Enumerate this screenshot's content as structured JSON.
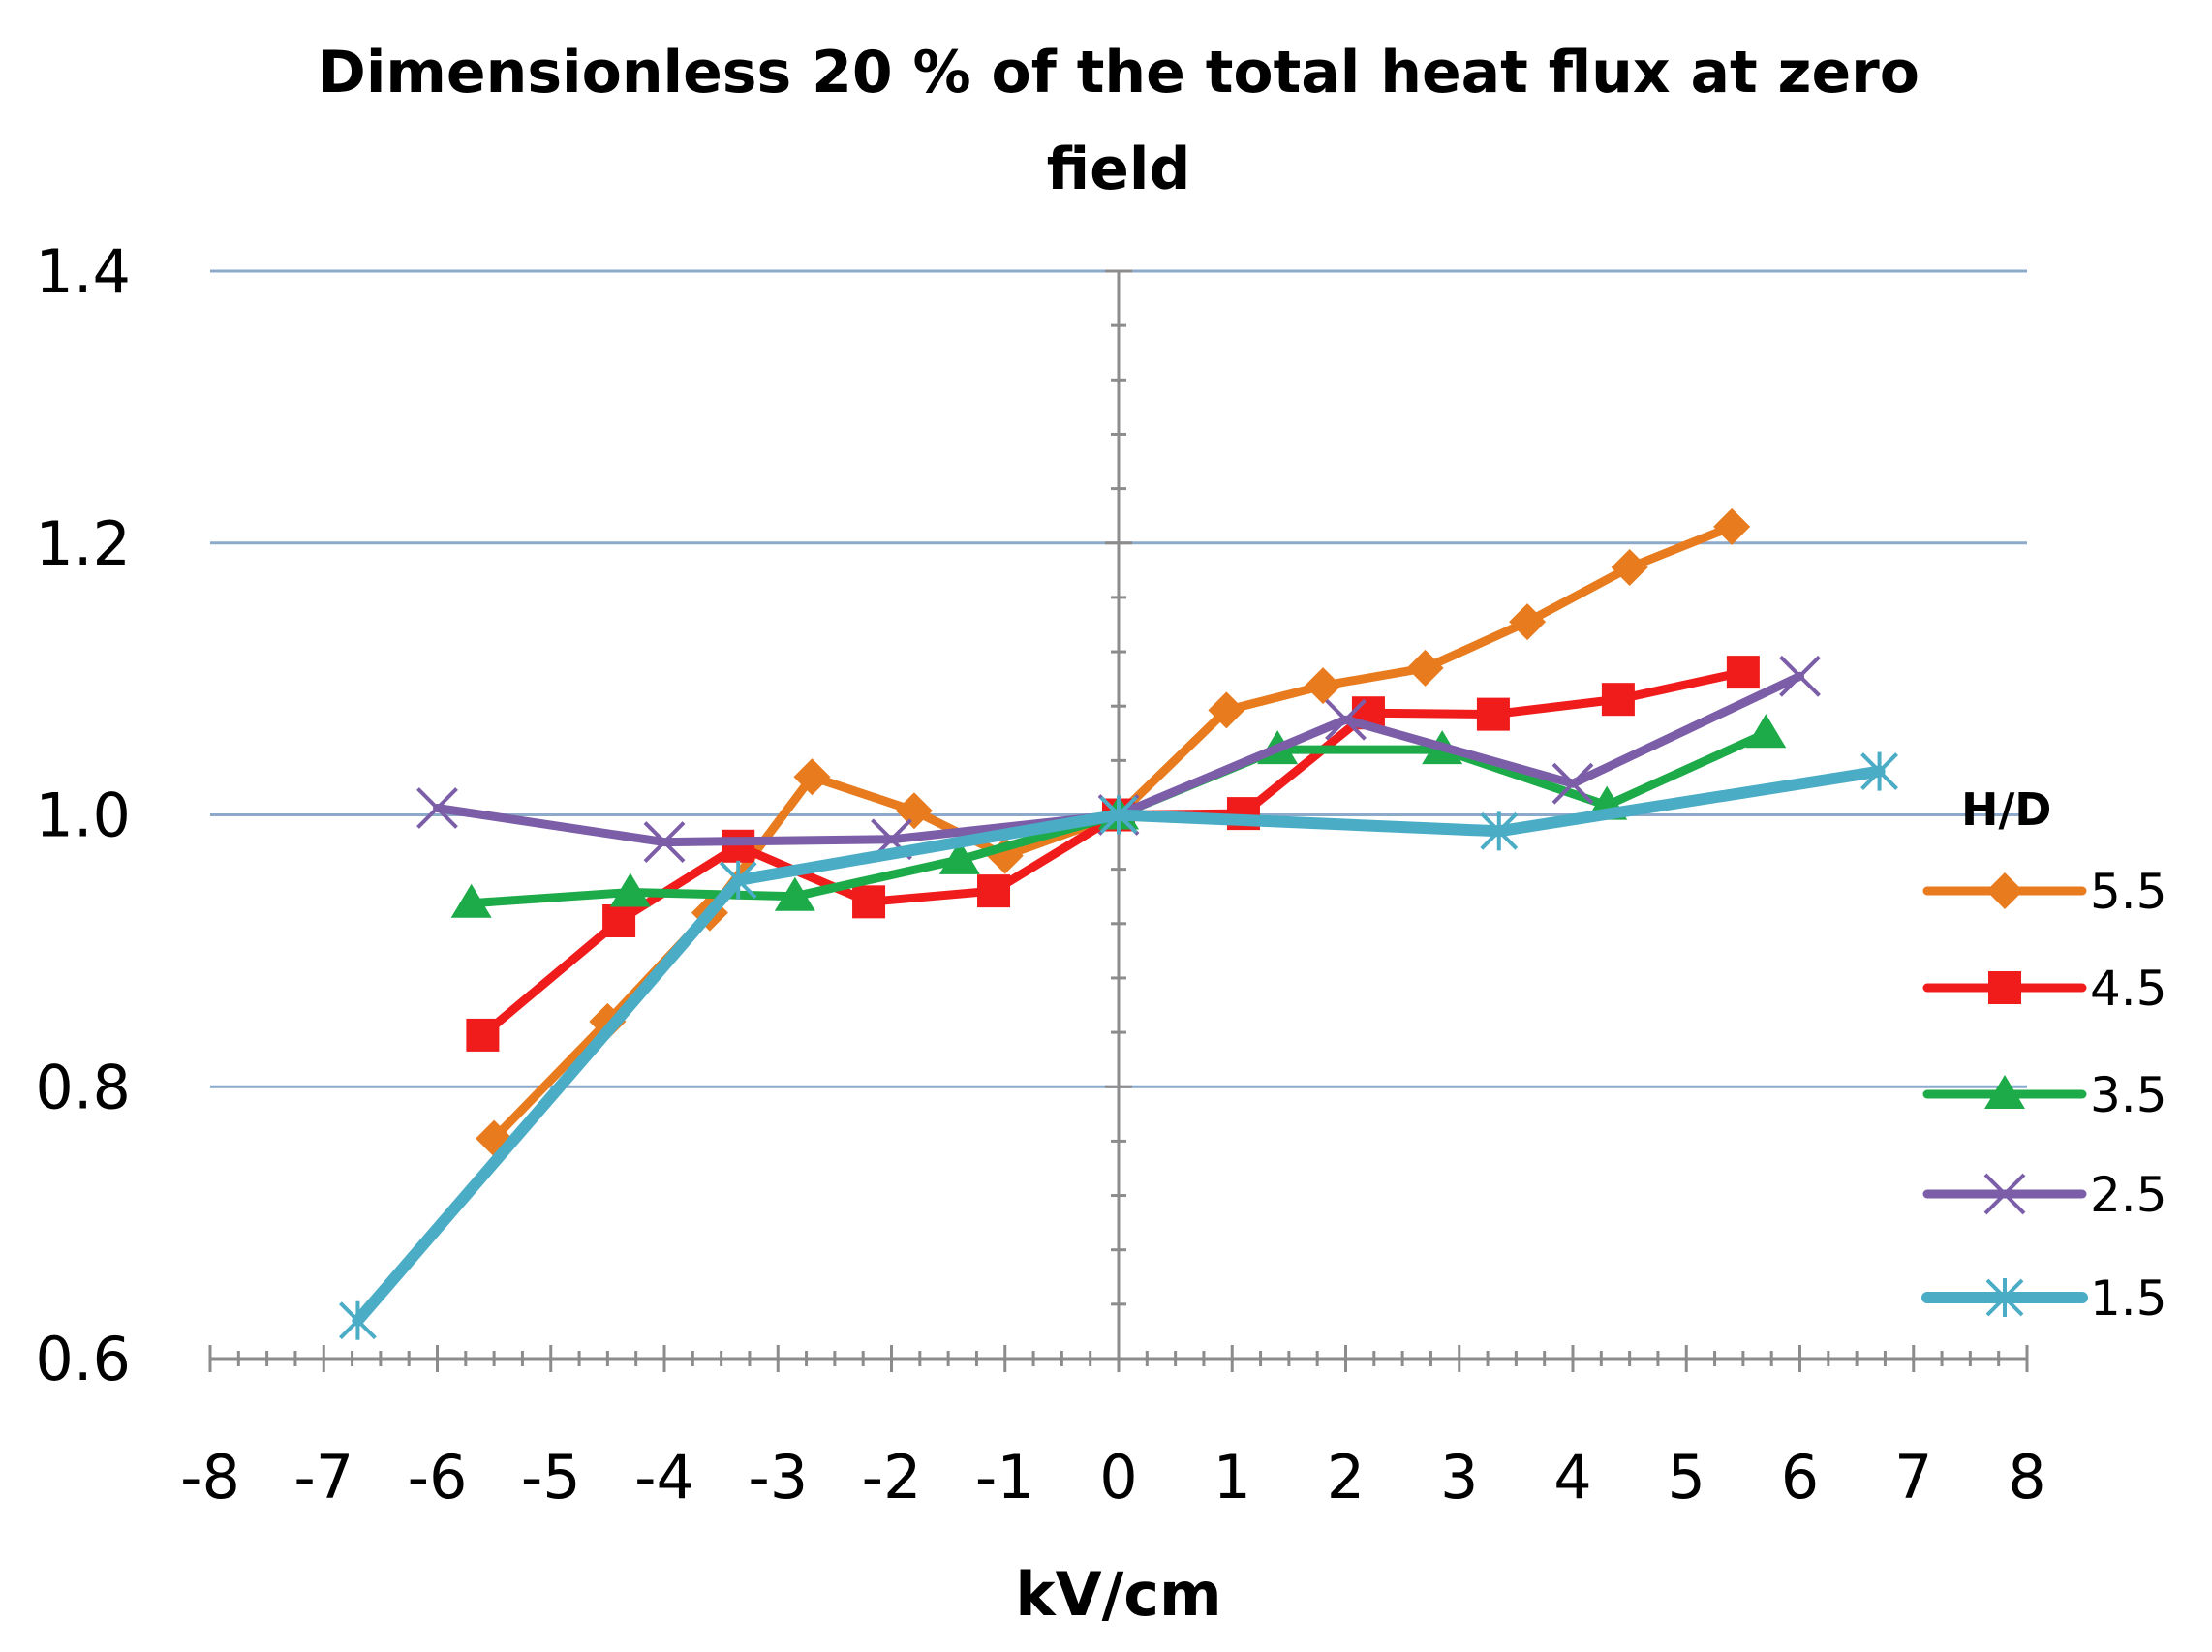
{
  "chart_data": {
    "type": "line",
    "title_lines": [
      "Dimensionless 20 % of the total heat flux at zero",
      "field"
    ],
    "xlabel": "kV/cm",
    "ylabel": "",
    "xlim": [
      -8,
      8
    ],
    "ylim": [
      0.6,
      1.4
    ],
    "x_ticks": [
      -8,
      -7,
      -6,
      -5,
      -4,
      -3,
      -2,
      -1,
      0,
      1,
      2,
      3,
      4,
      5,
      6,
      7,
      8
    ],
    "x_tick_labels": [
      "-8",
      "-7",
      "-6",
      "-5",
      "-4",
      "-3",
      "-2",
      "-1",
      "0",
      "1",
      "2",
      "3",
      "4",
      "5",
      "6",
      "7",
      "8"
    ],
    "y_ticks": [
      0.6,
      0.8,
      1.0,
      1.2,
      1.4
    ],
    "y_tick_labels": [
      "0.6",
      "0.8",
      "1.0",
      "1.2",
      "1.4"
    ],
    "grid": true,
    "legend_title": "H/D",
    "legend_position": "right",
    "series": [
      {
        "name": "5.5",
        "color": "#E87B1E",
        "marker": "diamond",
        "x": [
          -5.5,
          -4.5,
          -3.6,
          -2.7,
          -1.8,
          -1.0,
          0,
          0.95,
          1.8,
          2.7,
          3.6,
          4.5,
          5.4
        ],
        "y": [
          0.762,
          0.848,
          0.928,
          1.028,
          1.003,
          0.97,
          1.0,
          1.077,
          1.095,
          1.108,
          1.142,
          1.182,
          1.212
        ]
      },
      {
        "name": "4.5",
        "color": "#F01C1C",
        "marker": "square",
        "x": [
          -5.6,
          -4.4,
          -3.35,
          -2.2,
          -1.1,
          0,
          1.1,
          2.2,
          3.3,
          4.4,
          5.5
        ],
        "y": [
          0.838,
          0.922,
          0.977,
          0.936,
          0.944,
          1.0,
          1.001,
          1.075,
          1.074,
          1.085,
          1.105
        ]
      },
      {
        "name": "3.5",
        "color": "#1DAB4A",
        "marker": "triangle",
        "x": [
          -5.7,
          -4.3,
          -2.85,
          -1.4,
          0,
          1.4,
          2.85,
          4.3,
          5.7
        ],
        "y": [
          0.935,
          0.943,
          0.94,
          0.967,
          1.0,
          1.048,
          1.048,
          1.007,
          1.06
        ]
      },
      {
        "name": "2.5",
        "color": "#7B5EA7",
        "marker": "x",
        "x": [
          -6.0,
          -4.0,
          -2.0,
          0,
          2.0,
          4.0,
          6.0
        ],
        "y": [
          1.005,
          0.98,
          0.982,
          1.0,
          1.07,
          1.023,
          1.102
        ]
      },
      {
        "name": "1.5",
        "color": "#4BACC6",
        "marker": "asterisk",
        "x": [
          -6.7,
          -3.35,
          0,
          3.35,
          6.7
        ],
        "y": [
          0.628,
          0.952,
          1.0,
          0.988,
          1.032
        ]
      }
    ]
  }
}
